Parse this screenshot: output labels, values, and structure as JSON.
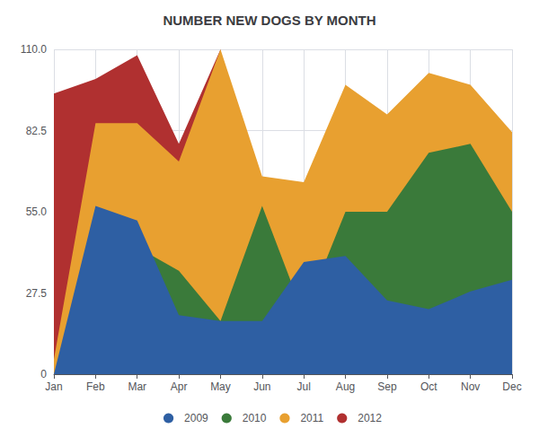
{
  "chart_data": {
    "type": "area",
    "title": "NUMBER NEW DOGS BY MONTH",
    "categories": [
      "Jan",
      "Feb",
      "Mar",
      "Apr",
      "May",
      "Jun",
      "Jul",
      "Aug",
      "Sep",
      "Oct",
      "Nov",
      "Dec"
    ],
    "series": [
      {
        "name": "2009",
        "color": "#2e5fa3",
        "values": [
          0,
          57,
          52,
          20,
          18,
          18,
          38,
          40,
          25,
          22,
          28,
          32
        ]
      },
      {
        "name": "2010",
        "color": "#3a7a3a",
        "values": [
          0,
          0,
          43,
          35,
          18,
          57,
          20,
          55,
          55,
          75,
          78,
          55
        ]
      },
      {
        "name": "2011",
        "color": "#e8a030",
        "values": [
          5,
          85,
          85,
          72,
          110,
          67,
          65,
          98,
          88,
          102,
          98,
          82
        ]
      },
      {
        "name": "2012",
        "color": "#b03030",
        "values": [
          95,
          100,
          108,
          78,
          110,
          0,
          0,
          0,
          0,
          0,
          0,
          0
        ]
      }
    ],
    "ylim": [
      0,
      110
    ],
    "yticks": [
      0,
      27.5,
      {
        "value": 55,
        "label": "55.0"
      },
      82.5,
      {
        "value": 110,
        "label": "110.0"
      }
    ],
    "grid": true,
    "legend": "bottom"
  }
}
